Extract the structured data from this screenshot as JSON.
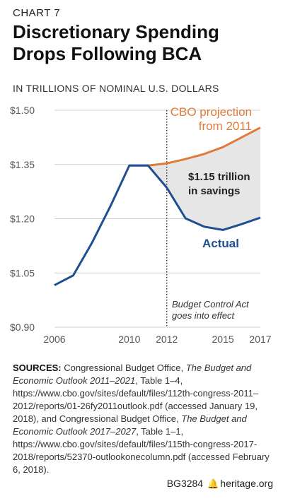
{
  "header": {
    "chart_label": "CHART 7",
    "title_line1": "Discretionary Spending",
    "title_line2": "Drops Following BCA",
    "units": "IN TRILLIONS OF NOMINAL U.S. DOLLARS"
  },
  "chart_data": {
    "type": "line",
    "title": "Discretionary Spending Drops Following BCA",
    "ylabel": "IN TRILLIONS OF NOMINAL U.S. DOLLARS",
    "xlim": [
      2006,
      2017
    ],
    "ylim": [
      0.9,
      1.5
    ],
    "x_ticks": [
      2006,
      2010,
      2012,
      2015,
      2017
    ],
    "y_ticks": [
      {
        "value": 0.9,
        "label": "$0.90"
      },
      {
        "value": 1.05,
        "label": "$1.05"
      },
      {
        "value": 1.2,
        "label": "$1.20"
      },
      {
        "value": 1.35,
        "label": "$1.35"
      },
      {
        "value": 1.5,
        "label": "$1.50"
      }
    ],
    "series": [
      {
        "name": "Actual",
        "color": "#1f4f91",
        "x": [
          2006,
          2007,
          2008,
          2009,
          2010,
          2011,
          2012,
          2013,
          2014,
          2015,
          2016,
          2017
        ],
        "values": [
          1.016,
          1.043,
          1.133,
          1.236,
          1.347,
          1.347,
          1.286,
          1.201,
          1.178,
          1.169,
          1.185,
          1.203
        ]
      },
      {
        "name": "CBO projection from 2011",
        "color": "#e07a3c",
        "x": [
          2011,
          2012,
          2013,
          2014,
          2015,
          2016,
          2017
        ],
        "values": [
          1.347,
          1.353,
          1.365,
          1.379,
          1.398,
          1.425,
          1.452
        ]
      }
    ],
    "shaded_region": {
      "between": [
        "CBO projection from 2011",
        "Actual"
      ],
      "from_x": 2011,
      "to_x": 2017,
      "color": "#e6e6e6"
    },
    "vertical_line": {
      "x": 2012,
      "style": "dotted"
    },
    "annotations": {
      "cbo_line1": "CBO projection",
      "cbo_line2": "from 2011",
      "savings_line1": "$1.15 trillion",
      "savings_line2": "in savings",
      "actual": "Actual",
      "bca_line1": "Budget Control Act",
      "bca_line2": "goes into effect"
    }
  },
  "sources": {
    "label": "SOURCES:",
    "part1": " Congressional Budget Office, ",
    "title1": "The Budget and Economic Outlook 2011–2021",
    "part2": ", Table 1–4, https://www.cbo.gov/sites/default/files/112th-congress-2011–2012/reports/01-26fy2011outlook.pdf (accessed January 19, 2018), and Congressional Budget Office, ",
    "title2": "The Budget and Economic Outlook 2017–2027",
    "part3": ", Table 1–1, https://www.cbo.gov/sites/default/files/115th-congress-2017-2018/reports/52370-outlookonecolumn.pdf (accessed February 6, 2018)."
  },
  "footer": {
    "code": "BG3284",
    "bell_icon": "bell-icon",
    "site": "heritage.org"
  }
}
